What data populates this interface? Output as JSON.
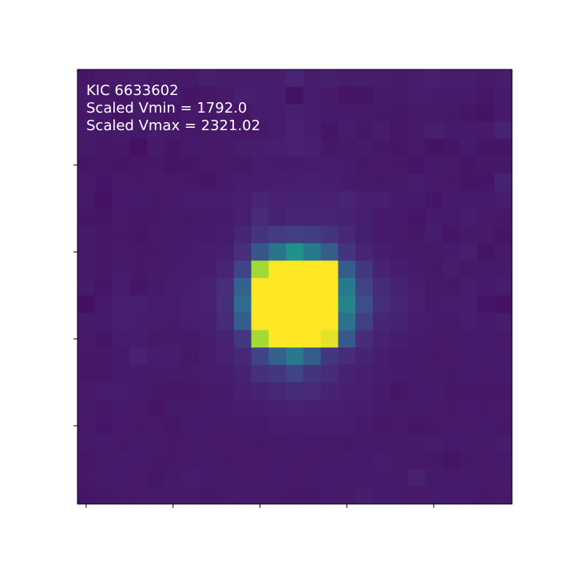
{
  "annotation": {
    "target": "KIC 6633602",
    "vmin_text": "Scaled Vmin = 1792.0",
    "vmax_text": "Scaled Vmax = 2321.02"
  },
  "colors": {
    "background": "#ffffff",
    "text": "#ffffff",
    "axis": "#000000",
    "colormap": "viridis"
  },
  "chart_data": {
    "type": "heatmap",
    "title": "",
    "xlabel": "",
    "ylabel": "",
    "tick_labels_shown": false,
    "colorbar": false,
    "vmin": 1792.0,
    "vmax": 2321.02,
    "rows": 25,
    "cols": 25,
    "values": [
      [
        1826,
        1830,
        1830,
        1837,
        1832,
        1830,
        1831,
        1841,
        1837,
        1835,
        1836,
        1838,
        1850,
        1838,
        1840,
        1837,
        1837,
        1836,
        1831,
        1838,
        1840,
        1836,
        1837,
        1832,
        1836
      ],
      [
        1830,
        1828,
        1825,
        1831,
        1826,
        1832,
        1824,
        1827,
        1830,
        1840,
        1839,
        1839,
        1818,
        1836,
        1830,
        1822,
        1824,
        1833,
        1830,
        1835,
        1833,
        1832,
        1832,
        1827,
        1833
      ],
      [
        1827,
        1828,
        1820,
        1832,
        1829,
        1826,
        1831,
        1826,
        1832,
        1824,
        1836,
        1836,
        1843,
        1837,
        1832,
        1831,
        1832,
        1828,
        1829,
        1830,
        1831,
        1829,
        1826,
        1820,
        1834
      ],
      [
        1831,
        1829,
        1832,
        1829,
        1833,
        1831,
        1827,
        1830,
        1830,
        1829,
        1830,
        1835,
        1844,
        1838,
        1826,
        1835,
        1828,
        1836,
        1827,
        1833,
        1840,
        1834,
        1831,
        1830,
        1845
      ],
      [
        1832,
        1827,
        1829,
        1818,
        1833,
        1825,
        1832,
        1830,
        1830,
        1839,
        1839,
        1840,
        1846,
        1841,
        1829,
        1832,
        1833,
        1829,
        1826,
        1830,
        1821,
        1826,
        1832,
        1825,
        1825
      ],
      [
        1826,
        1829,
        1825,
        1828,
        1828,
        1823,
        1825,
        1831,
        1831,
        1829,
        1837,
        1834,
        1834,
        1835,
        1835,
        1833,
        1828,
        1830,
        1828,
        1826,
        1832,
        1830,
        1826,
        1828,
        1829
      ],
      [
        1831,
        1826,
        1830,
        1829,
        1830,
        1831,
        1829,
        1825,
        1832,
        1835,
        1836,
        1838,
        1839,
        1840,
        1839,
        1834,
        1830,
        1829,
        1830,
        1835,
        1831,
        1829,
        1823,
        1826,
        1846
      ],
      [
        1832,
        1818,
        1831,
        1832,
        1829,
        1831,
        1835,
        1835,
        1836,
        1840,
        1851,
        1845,
        1847,
        1847,
        1844,
        1849,
        1840,
        1840,
        1834,
        1833,
        1826,
        1834,
        1832,
        1832,
        1836
      ],
      [
        1826,
        1825,
        1830,
        1827,
        1828,
        1832,
        1828,
        1832,
        1834,
        1840,
        1858,
        1846,
        1852,
        1851,
        1849,
        1844,
        1840,
        1831,
        1831,
        1826,
        1833,
        1831,
        1835,
        1830,
        1828
      ],
      [
        1832,
        1828,
        1829,
        1826,
        1830,
        1832,
        1833,
        1832,
        1835,
        1849,
        1875,
        1888,
        1895,
        1890,
        1875,
        1855,
        1842,
        1834,
        1831,
        1829,
        1835,
        1826,
        1830,
        1830,
        1826
      ],
      [
        1833,
        1829,
        1830,
        1829,
        1829,
        1832,
        1834,
        1835,
        1840,
        1865,
        1935,
        2000,
        2060,
        2010,
        1950,
        1875,
        1850,
        1838,
        1834,
        1832,
        1830,
        1834,
        1840,
        1822,
        1830
      ],
      [
        1832,
        1829,
        1833,
        1828,
        1830,
        1833,
        1836,
        1838,
        1850,
        1900,
        2250,
        2400,
        2450,
        2430,
        2360,
        1950,
        1880,
        1848,
        1838,
        1834,
        1829,
        1835,
        1830,
        1833,
        1832
      ],
      [
        1833,
        1826,
        1836,
        1826,
        1832,
        1835,
        1839,
        1845,
        1862,
        1960,
        2400,
        2600,
        2700,
        2620,
        2480,
        2010,
        1900,
        1858,
        1846,
        1838,
        1830,
        1829,
        1836,
        1831,
        1835
      ],
      [
        1815,
        1831,
        1841,
        1840,
        1835,
        1836,
        1841,
        1844,
        1866,
        1985,
        2440,
        2680,
        2800,
        2700,
        2560,
        2030,
        1920,
        1862,
        1849,
        1840,
        1832,
        1836,
        1839,
        1826,
        1820
      ],
      [
        1832,
        1832,
        1840,
        1839,
        1837,
        1833,
        1838,
        1841,
        1858,
        1950,
        2380,
        2560,
        2660,
        2580,
        2430,
        1995,
        1895,
        1852,
        1846,
        1838,
        1834,
        1832,
        1835,
        1832,
        1836
      ],
      [
        1831,
        1826,
        1836,
        1836,
        1830,
        1833,
        1832,
        1839,
        1848,
        1880,
        2250,
        2350,
        2400,
        2370,
        2300,
        1940,
        1860,
        1846,
        1839,
        1834,
        1831,
        1830,
        1832,
        1833,
        1830
      ],
      [
        1829,
        1828,
        1832,
        1848,
        1836,
        1836,
        1829,
        1836,
        1844,
        1855,
        1900,
        1960,
        2010,
        1950,
        1880,
        1860,
        1848,
        1838,
        1832,
        1831,
        1828,
        1830,
        1831,
        1832,
        1831
      ],
      [
        1827,
        1827,
        1832,
        1833,
        1833,
        1834,
        1833,
        1836,
        1838,
        1846,
        1866,
        1880,
        1900,
        1875,
        1860,
        1845,
        1841,
        1836,
        1833,
        1832,
        1830,
        1828,
        1832,
        1830,
        1832
      ],
      [
        1830,
        1837,
        1836,
        1832,
        1829,
        1827,
        1829,
        1830,
        1834,
        1840,
        1845,
        1855,
        1860,
        1858,
        1848,
        1843,
        1840,
        1834,
        1824,
        1832,
        1834,
        1828,
        1829,
        1827,
        1828
      ],
      [
        1832,
        1829,
        1832,
        1830,
        1823,
        1832,
        1830,
        1832,
        1832,
        1836,
        1838,
        1840,
        1845,
        1843,
        1840,
        1838,
        1836,
        1832,
        1830,
        1832,
        1830,
        1829,
        1831,
        1828,
        1830
      ],
      [
        1830,
        1826,
        1831,
        1828,
        1830,
        1827,
        1832,
        1832,
        1830,
        1832,
        1832,
        1835,
        1835,
        1836,
        1836,
        1835,
        1832,
        1827,
        1830,
        1826,
        1828,
        1831,
        1830,
        1832,
        1829
      ],
      [
        1832,
        1834,
        1829,
        1832,
        1832,
        1829,
        1830,
        1831,
        1831,
        1830,
        1829,
        1830,
        1832,
        1831,
        1830,
        1829,
        1832,
        1831,
        1832,
        1834,
        1836,
        1832,
        1832,
        1830,
        1836
      ],
      [
        1827,
        1830,
        1833,
        1831,
        1828,
        1829,
        1831,
        1833,
        1829,
        1830,
        1831,
        1832,
        1830,
        1830,
        1832,
        1833,
        1831,
        1836,
        1830,
        1830,
        1829,
        1823,
        1828,
        1830,
        1832
      ],
      [
        1829,
        1834,
        1832,
        1830,
        1827,
        1832,
        1836,
        1832,
        1832,
        1831,
        1830,
        1832,
        1831,
        1834,
        1833,
        1831,
        1832,
        1832,
        1832,
        1844,
        1832,
        1831,
        1833,
        1831,
        1830
      ],
      [
        1826,
        1829,
        1830,
        1830,
        1832,
        1830,
        1832,
        1829,
        1830,
        1831,
        1832,
        1830,
        1828,
        1829,
        1832,
        1830,
        1838,
        1833,
        1832,
        1830,
        1833,
        1832,
        1831,
        1829,
        1830
      ]
    ]
  }
}
